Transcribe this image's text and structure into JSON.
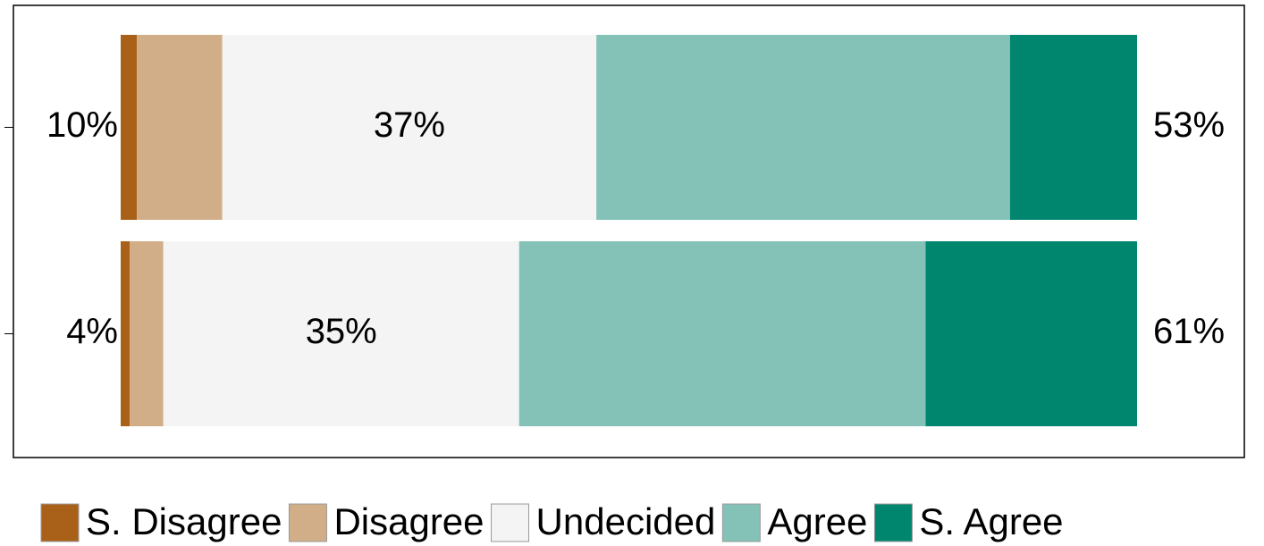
{
  "chart_data": {
    "type": "stacked_barh",
    "categories": [
      null,
      null
    ],
    "series": [
      {
        "name": "S. Disagree",
        "color": "#a9611a",
        "values": [
          1.6,
          0.9
        ]
      },
      {
        "name": "Disagree",
        "color": "#d2ae88",
        "values": [
          8.4,
          3.3
        ]
      },
      {
        "name": "Undecided",
        "color": "#f4f4f4",
        "values": [
          36.8,
          35
        ],
        "value_labels": [
          "37%",
          "35%"
        ]
      },
      {
        "name": "Agree",
        "color": "#84c2b8",
        "values": [
          40.7,
          40
        ]
      },
      {
        "name": "S. Agree",
        "color": "#00866f",
        "values": [
          12.5,
          20.8
        ]
      }
    ],
    "left_totals": {
      "values": [
        10,
        4
      ],
      "value_labels": [
        "10%",
        "4%"
      ]
    },
    "right_totals": {
      "values": [
        53,
        61
      ],
      "value_labels": [
        "53%",
        "61%"
      ]
    },
    "xlim": [
      0,
      100
    ],
    "legend": "bottom"
  }
}
